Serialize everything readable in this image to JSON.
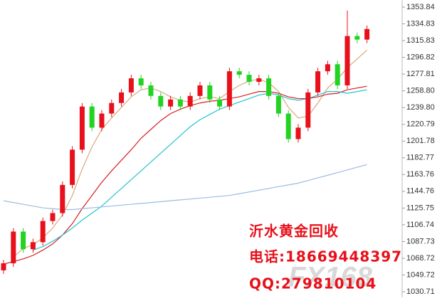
{
  "chart_data": {
    "type": "candlestick",
    "open": [
      1055,
      1063,
      1099,
      1079,
      1087,
      1111,
      1120,
      1152,
      1192,
      1241,
      1217,
      1233,
      1245,
      1257,
      1273,
      1265,
      1253,
      1241,
      1249,
      1241,
      1253,
      1265,
      1249,
      1241,
      1281,
      1277,
      1269,
      1273,
      1253,
      1233,
      1204,
      1217,
      1257,
      1281,
      1289,
      1265,
      1321,
      1317
    ],
    "high": [
      1067,
      1103,
      1103,
      1091,
      1115,
      1124,
      1156,
      1196,
      1245,
      1245,
      1237,
      1249,
      1261,
      1277,
      1277,
      1269,
      1257,
      1253,
      1253,
      1257,
      1269,
      1269,
      1253,
      1285,
      1285,
      1281,
      1277,
      1277,
      1257,
      1237,
      1221,
      1261,
      1285,
      1293,
      1293,
      1350,
      1325,
      1333
    ],
    "low": [
      1051,
      1059,
      1075,
      1075,
      1083,
      1107,
      1116,
      1148,
      1188,
      1213,
      1213,
      1229,
      1241,
      1253,
      1261,
      1249,
      1237,
      1237,
      1237,
      1237,
      1249,
      1245,
      1237,
      1237,
      1273,
      1265,
      1265,
      1249,
      1229,
      1200,
      1200,
      1213,
      1253,
      1277,
      1261,
      1261,
      1313,
      1313
    ],
    "close": [
      1063,
      1099,
      1079,
      1087,
      1111,
      1120,
      1152,
      1192,
      1241,
      1217,
      1233,
      1245,
      1257,
      1273,
      1265,
      1253,
      1241,
      1249,
      1241,
      1253,
      1265,
      1249,
      1241,
      1281,
      1277,
      1269,
      1273,
      1253,
      1233,
      1204,
      1217,
      1257,
      1281,
      1289,
      1265,
      1321,
      1317,
      1329
    ],
    "up_color": "#e8101a",
    "down_color": "#22d322",
    "series": [
      {
        "color": "#d9a77a",
        "values": [
          null,
          1070,
          1080,
          1084,
          1092,
          1103,
          1118,
          1140,
          1170,
          1195,
          1215,
          1228,
          1240,
          1252,
          1260,
          1262,
          1258,
          1252,
          1248,
          1246,
          1250,
          1252,
          1250,
          1258,
          1265,
          1270,
          1272,
          1268,
          1258,
          1240,
          1228,
          1230,
          1245,
          1262,
          1272,
          1285,
          1295,
          1305
        ]
      },
      {
        "color": "#d81e1e",
        "values": [
          1062,
          1065,
          1068,
          1072,
          1078,
          1085,
          1095,
          1108,
          1125,
          1140,
          1155,
          1168,
          1180,
          1192,
          1205,
          1215,
          1225,
          1233,
          1238,
          1242,
          1245,
          1247,
          1248,
          1250,
          1252,
          1255,
          1258,
          1258,
          1256,
          1252,
          1250,
          1250,
          1252,
          1255,
          1256,
          1260,
          1262,
          1264
        ]
      },
      {
        "color": "#22c4cf",
        "values": [
          null,
          null,
          null,
          1078,
          1082,
          1088,
          1095,
          1103,
          1112,
          1120,
          1128,
          1138,
          1148,
          1158,
          1168,
          1178,
          1188,
          1198,
          1208,
          1218,
          1226,
          1232,
          1238,
          1242,
          1246,
          1250,
          1254,
          1256,
          1254,
          1250,
          1248,
          1250,
          1254,
          1258,
          1258,
          1256,
          1258,
          1260
        ]
      },
      {
        "color": "#9bbde0",
        "values": [
          1134,
          1132,
          1130,
          1128,
          1126,
          1125,
          1124,
          1124,
          1125,
          1126,
          1127,
          1128,
          1129,
          1130,
          1131,
          1132,
          1133,
          1134,
          1135,
          1136,
          1137,
          1138,
          1139,
          1140,
          1142,
          1144,
          1146,
          1148,
          1150,
          1152,
          1154,
          1157,
          1160,
          1163,
          1166,
          1169,
          1172,
          1175
        ]
      }
    ],
    "ylim": [
      1030.71,
      1353.84
    ],
    "yticks": [
      1353.84,
      1334.83,
      1315.83,
      1296.82,
      1277.81,
      {
        "value": 1258.8,
        "label": "1258.80"
      },
      {
        "value": 1239.8,
        "label": "1239.80"
      },
      1220.79,
      1201.78,
      1182.77,
      1163.76,
      1144.76,
      1125.75,
      1106.74,
      1087.73,
      1068.72,
      1049.72,
      1030.71
    ]
  },
  "watermark": {
    "name": "沂水黄金回收",
    "phone": "电话:18669448397",
    "qq": "QQ:279810104",
    "logo": "FX168"
  }
}
